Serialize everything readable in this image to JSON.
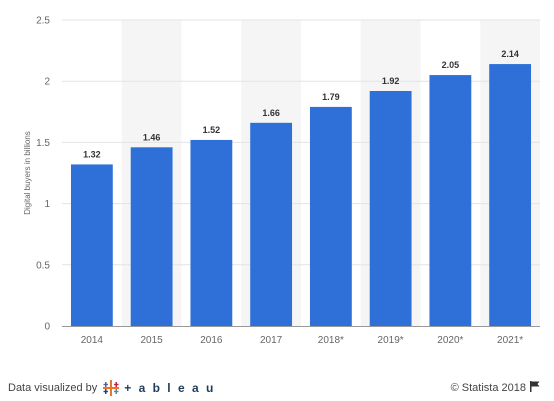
{
  "chart_data": {
    "type": "bar",
    "categories": [
      "2014",
      "2015",
      "2016",
      "2017",
      "2018*",
      "2019*",
      "2020*",
      "2021*"
    ],
    "values": [
      1.32,
      1.46,
      1.52,
      1.66,
      1.79,
      1.92,
      2.05,
      2.14
    ],
    "value_labels": [
      "1.32",
      "1.46",
      "1.52",
      "1.66",
      "1.79",
      "1.92",
      "2.05",
      "2.14"
    ],
    "ylabel": "Digital buyers in billions",
    "ylim": [
      0,
      2.5
    ],
    "yticks": [
      0,
      0.5,
      1,
      1.5,
      2,
      2.5
    ],
    "ytick_labels": [
      "0",
      "0.5",
      "1",
      "1.5",
      "2",
      "2.5"
    ],
    "grid": true,
    "bar_color": "#2e6fd8",
    "band_color": "#f5f5f5",
    "legend": "none"
  },
  "footer": {
    "visualized_by": "Data visualized by",
    "tableau": "+ a b l e a u",
    "copyright": "© Statista 2018"
  },
  "icons": {
    "tableau_logo": "tableau-cross-icon",
    "flag": "flag-icon"
  }
}
